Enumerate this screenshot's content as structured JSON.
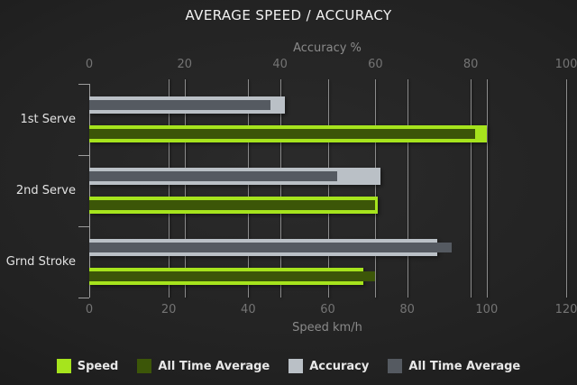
{
  "title": "AVERAGE SPEED / ACCURACY",
  "chart_data": {
    "type": "bar",
    "orientation": "horizontal",
    "title": "AVERAGE SPEED / ACCURACY",
    "categories": [
      "1st Serve",
      "2nd Serve",
      "Grnd Stroke"
    ],
    "axes": {
      "top": {
        "label": "Accuracy %",
        "ticks": [
          0,
          20,
          40,
          60,
          80,
          100
        ],
        "range": [
          0,
          100
        ]
      },
      "bottom": {
        "label": "Speed km/h",
        "ticks": [
          0,
          20,
          40,
          60,
          80,
          100,
          120
        ],
        "range": [
          0,
          120
        ]
      }
    },
    "series": [
      {
        "name": "Speed",
        "axis": "bottom",
        "role": "outer",
        "color": "#a6e41d",
        "values": [
          100,
          72.5,
          69
        ]
      },
      {
        "name": "All Time Average",
        "axis": "bottom",
        "role": "inner",
        "color": "#3c5608",
        "values": [
          97,
          72,
          72
        ]
      },
      {
        "name": "Accuracy",
        "axis": "top",
        "role": "outer",
        "color": "#bac0c6",
        "values": [
          41,
          61,
          73
        ]
      },
      {
        "name": "All Time Average",
        "axis": "top",
        "role": "inner",
        "color": "#555a61",
        "values": [
          38,
          52,
          76
        ]
      }
    ],
    "grid": true,
    "legend_position": "bottom"
  },
  "colors": {
    "background_center": "#2b2b2b",
    "background_edge": "#121212",
    "gridline": "#8c8c8c",
    "axis_line": "#9d9d9d",
    "title_text": "#f2f2f2",
    "axis_title_text": "#8a8a8a",
    "tick_label_text": "#747474",
    "category_label_text": "#e2e2e2",
    "legend_text": "#e8e8e8"
  }
}
